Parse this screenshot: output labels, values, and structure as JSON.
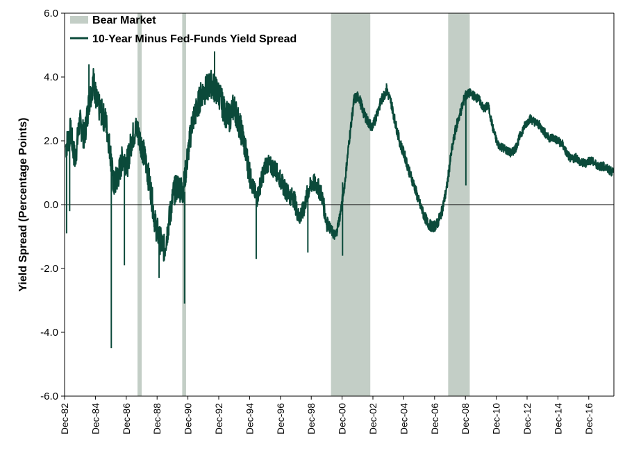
{
  "chart_data": {
    "type": "line",
    "title": "",
    "xlabel": "",
    "ylabel": "Yield Spread (Percentage Points)",
    "ylim": [
      -6.0,
      6.0
    ],
    "xlim": [
      "1982-12",
      "2018-07"
    ],
    "y_ticks": [
      "6.0",
      "4.0",
      "2.0",
      "0.0",
      "-2.0",
      "-4.0",
      "-6.0"
    ],
    "y_tick_values": [
      6,
      4,
      2,
      0,
      -2,
      -4,
      -6
    ],
    "x_ticks": [
      "Dec-82",
      "Dec-84",
      "Dec-86",
      "Dec-88",
      "Dec-90",
      "Dec-92",
      "Dec-94",
      "Dec-96",
      "Dec-98",
      "Dec-00",
      "Dec-02",
      "Dec-04",
      "Dec-06",
      "Dec-08",
      "Dec-10",
      "Dec-12",
      "Dec-14",
      "Dec-16"
    ],
    "x_tick_values": [
      1982.92,
      1984.92,
      1986.92,
      1988.92,
      1990.92,
      1992.92,
      1994.92,
      1996.92,
      1998.92,
      2000.92,
      2002.92,
      2004.92,
      2006.92,
      2008.92,
      2010.92,
      2012.92,
      2014.92,
      2016.92
    ],
    "grid": false,
    "legend_position": "top-left",
    "legend": [
      "Bear Market",
      "10-Year Minus Fed-Funds Yield Spread"
    ],
    "colors": {
      "line": "#0b4a3a",
      "bear": "#c3cec6",
      "axis": "#000000"
    },
    "bear_markets": {
      "name": "Bear Market",
      "periods": [
        {
          "start": 1987.65,
          "end": 1987.92
        },
        {
          "start": 1990.55,
          "end": 1990.8
        },
        {
          "start": 2000.2,
          "end": 2002.75
        },
        {
          "start": 2007.8,
          "end": 2009.2
        }
      ]
    },
    "series": [
      {
        "name": "10-Year Minus Fed-Funds Yield Spread",
        "x": [
          1983.0,
          1983.3,
          1983.6,
          1983.9,
          1984.2,
          1984.5,
          1984.8,
          1985.0,
          1985.3,
          1985.6,
          1985.9,
          1986.1,
          1986.4,
          1986.7,
          1987.0,
          1987.3,
          1987.6,
          1987.9,
          1988.2,
          1988.5,
          1988.8,
          1989.1,
          1989.4,
          1989.7,
          1990.0,
          1990.3,
          1990.6,
          1990.9,
          1991.2,
          1991.5,
          1991.8,
          1992.1,
          1992.4,
          1992.7,
          1993.0,
          1993.3,
          1993.6,
          1993.9,
          1994.2,
          1994.5,
          1994.8,
          1995.1,
          1995.4,
          1995.7,
          1996.0,
          1996.3,
          1996.6,
          1996.9,
          1997.2,
          1997.5,
          1997.8,
          1998.1,
          1998.4,
          1998.7,
          1999.0,
          1999.3,
          1999.6,
          1999.9,
          2000.2,
          2000.5,
          2000.8,
          2001.1,
          2001.4,
          2001.7,
          2002.0,
          2002.3,
          2002.6,
          2002.9,
          2003.2,
          2003.5,
          2003.8,
          2004.1,
          2004.4,
          2004.7,
          2005.0,
          2005.3,
          2005.6,
          2005.9,
          2006.2,
          2006.5,
          2006.8,
          2007.1,
          2007.4,
          2007.7,
          2008.0,
          2008.3,
          2008.6,
          2008.9,
          2009.2,
          2009.5,
          2009.8,
          2010.1,
          2010.4,
          2010.7,
          2011.0,
          2011.3,
          2011.6,
          2011.9,
          2012.2,
          2012.5,
          2012.8,
          2013.1,
          2013.4,
          2013.7,
          2014.0,
          2014.3,
          2014.6,
          2014.9,
          2015.2,
          2015.5,
          2015.8,
          2016.1,
          2016.4,
          2016.7,
          2017.0,
          2017.3,
          2017.6,
          2017.9,
          2018.2,
          2018.5
        ],
        "y": [
          1.8,
          2.3,
          1.4,
          2.6,
          2.1,
          3.2,
          3.9,
          3.2,
          2.9,
          2.6,
          1.6,
          0.6,
          0.9,
          1.5,
          1.3,
          2.1,
          2.4,
          1.9,
          1.3,
          0.5,
          -0.6,
          -1.1,
          -1.4,
          -0.5,
          0.4,
          0.6,
          0.4,
          1.5,
          2.6,
          3.0,
          3.5,
          3.6,
          3.8,
          3.6,
          3.4,
          2.9,
          2.7,
          3.1,
          2.6,
          2.1,
          1.3,
          0.6,
          0.2,
          0.8,
          1.3,
          1.2,
          1.1,
          0.8,
          0.5,
          0.3,
          0.2,
          -0.4,
          -0.2,
          0.4,
          0.7,
          0.6,
          0.3,
          -0.5,
          -0.8,
          -1.0,
          -0.3,
          0.7,
          2.1,
          3.3,
          3.4,
          2.9,
          2.6,
          2.4,
          2.9,
          3.3,
          3.6,
          3.2,
          2.5,
          1.9,
          1.5,
          1.0,
          0.6,
          0.1,
          -0.3,
          -0.6,
          -0.7,
          -0.6,
          -0.2,
          0.5,
          1.6,
          2.4,
          2.9,
          3.4,
          3.5,
          3.4,
          3.3,
          3.0,
          3.1,
          2.4,
          1.9,
          1.8,
          1.7,
          1.6,
          1.8,
          2.2,
          2.5,
          2.7,
          2.6,
          2.5,
          2.3,
          2.1,
          2.1,
          2.0,
          1.9,
          1.6,
          1.4,
          1.5,
          1.3,
          1.3,
          1.4,
          1.3,
          1.2,
          1.2,
          1.1,
          1.0
        ]
      }
    ],
    "spikes": [
      {
        "x": 1983.05,
        "y": -0.9
      },
      {
        "x": 1983.25,
        "y": -0.2
      },
      {
        "x": 1984.5,
        "y": 4.4
      },
      {
        "x": 1985.95,
        "y": -4.5
      },
      {
        "x": 1986.8,
        "y": -1.9
      },
      {
        "x": 1989.05,
        "y": -2.3
      },
      {
        "x": 1990.7,
        "y": -3.1
      },
      {
        "x": 1992.65,
        "y": 4.8
      },
      {
        "x": 1995.35,
        "y": -1.7
      },
      {
        "x": 1998.7,
        "y": -1.5
      },
      {
        "x": 2000.95,
        "y": -1.6
      },
      {
        "x": 2003.8,
        "y": 3.8
      },
      {
        "x": 2008.95,
        "y": 0.6
      }
    ]
  }
}
